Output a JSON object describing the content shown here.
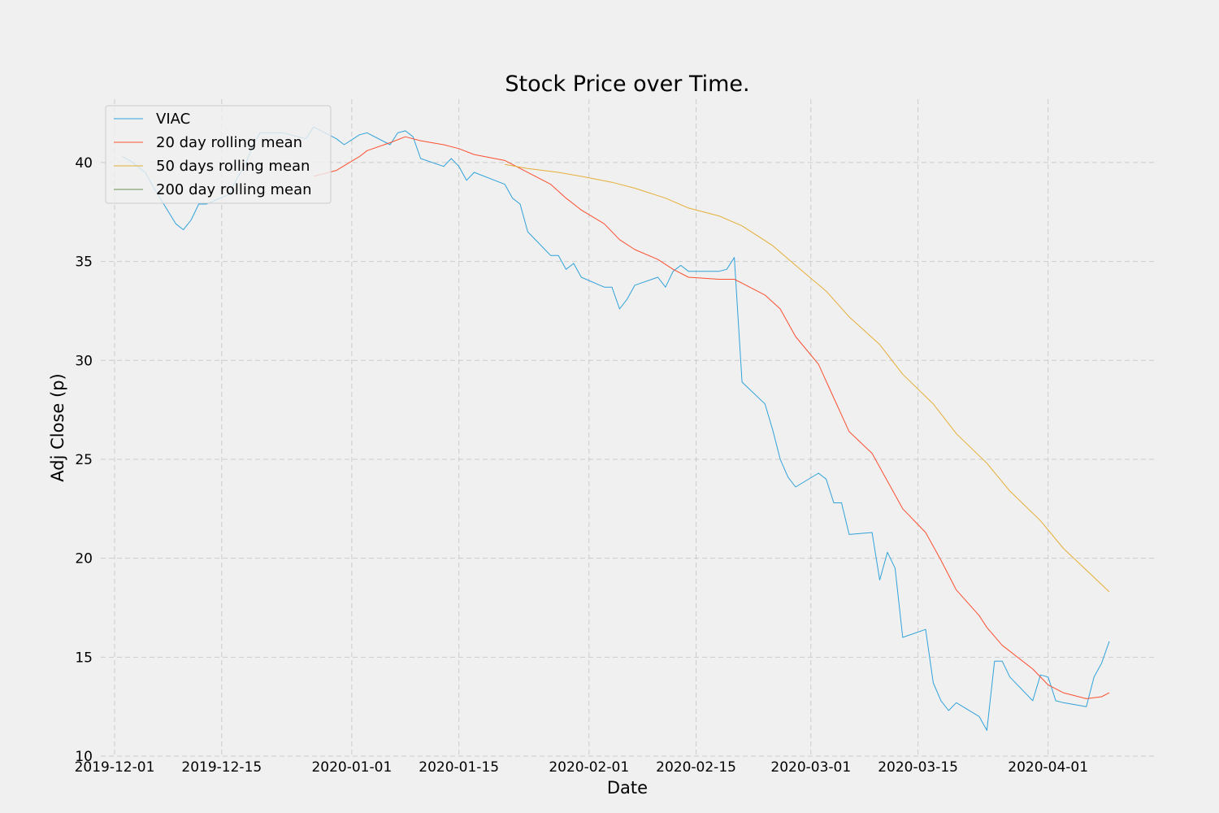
{
  "chart_data": {
    "type": "line",
    "title": "Stock Price over Time.",
    "xlabel": "Date",
    "ylabel": "Adj Close (p)",
    "xlim": [
      "2019-12-01",
      "2020-04-09"
    ],
    "ylim": [
      10,
      43.2
    ],
    "grid": true,
    "legend_position": "top-left",
    "x_ticks": [
      "2019-12-01",
      "2019-12-15",
      "2020-01-01",
      "2020-01-15",
      "2020-02-01",
      "2020-02-15",
      "2020-03-01",
      "2020-03-15",
      "2020-04-01"
    ],
    "y_ticks": [
      10,
      15,
      20,
      25,
      30,
      35,
      40
    ],
    "series": [
      {
        "name": "VIAC",
        "color": "#30a2da",
        "points": [
          [
            "2019-12-02",
            40.3
          ],
          [
            "2019-12-03",
            40.1
          ],
          [
            "2019-12-04",
            39.8
          ],
          [
            "2019-12-05",
            39.5
          ],
          [
            "2019-12-06",
            38.8
          ],
          [
            "2019-12-09",
            36.9
          ],
          [
            "2019-12-10",
            36.6
          ],
          [
            "2019-12-11",
            37.1
          ],
          [
            "2019-12-12",
            37.9
          ],
          [
            "2019-12-13",
            37.9
          ],
          [
            "2019-12-16",
            38.4
          ],
          [
            "2019-12-17",
            39.2
          ],
          [
            "2019-12-18",
            39.8
          ],
          [
            "2019-12-19",
            40.8
          ],
          [
            "2019-12-20",
            41.5
          ],
          [
            "2019-12-23",
            41.5
          ],
          [
            "2019-12-24",
            41.4
          ],
          [
            "2019-12-26",
            41.2
          ],
          [
            "2019-12-27",
            41.8
          ],
          [
            "2019-12-30",
            41.2
          ],
          [
            "2019-12-31",
            40.9
          ],
          [
            "2020-01-02",
            41.4
          ],
          [
            "2020-01-03",
            41.5
          ],
          [
            "2020-01-06",
            40.9
          ],
          [
            "2020-01-07",
            41.5
          ],
          [
            "2020-01-08",
            41.6
          ],
          [
            "2020-01-09",
            41.3
          ],
          [
            "2020-01-10",
            40.2
          ],
          [
            "2020-01-13",
            39.8
          ],
          [
            "2020-01-14",
            40.2
          ],
          [
            "2020-01-15",
            39.8
          ],
          [
            "2020-01-16",
            39.1
          ],
          [
            "2020-01-17",
            39.5
          ],
          [
            "2020-01-21",
            38.9
          ],
          [
            "2020-01-22",
            38.2
          ],
          [
            "2020-01-23",
            37.9
          ],
          [
            "2020-01-24",
            36.5
          ],
          [
            "2020-01-27",
            35.3
          ],
          [
            "2020-01-28",
            35.3
          ],
          [
            "2020-01-29",
            34.6
          ],
          [
            "2020-01-30",
            34.9
          ],
          [
            "2020-01-31",
            34.2
          ],
          [
            "2020-02-03",
            33.7
          ],
          [
            "2020-02-04",
            33.7
          ],
          [
            "2020-02-05",
            32.6
          ],
          [
            "2020-02-06",
            33.1
          ],
          [
            "2020-02-07",
            33.8
          ],
          [
            "2020-02-10",
            34.2
          ],
          [
            "2020-02-11",
            33.7
          ],
          [
            "2020-02-12",
            34.5
          ],
          [
            "2020-02-13",
            34.8
          ],
          [
            "2020-02-14",
            34.5
          ],
          [
            "2020-02-18",
            34.5
          ],
          [
            "2020-02-19",
            34.6
          ],
          [
            "2020-02-20",
            35.2
          ],
          [
            "2020-02-21",
            28.9
          ],
          [
            "2020-02-24",
            27.8
          ],
          [
            "2020-02-25",
            26.5
          ],
          [
            "2020-02-26",
            25.0
          ],
          [
            "2020-02-27",
            24.1
          ],
          [
            "2020-02-28",
            23.6
          ],
          [
            "2020-03-02",
            24.3
          ],
          [
            "2020-03-03",
            24.0
          ],
          [
            "2020-03-04",
            22.8
          ],
          [
            "2020-03-05",
            22.8
          ],
          [
            "2020-03-06",
            21.2
          ],
          [
            "2020-03-09",
            21.3
          ],
          [
            "2020-03-10",
            18.9
          ],
          [
            "2020-03-11",
            20.3
          ],
          [
            "2020-03-12",
            19.5
          ],
          [
            "2020-03-13",
            16.0
          ],
          [
            "2020-03-16",
            16.4
          ],
          [
            "2020-03-17",
            13.7
          ],
          [
            "2020-03-18",
            12.8
          ],
          [
            "2020-03-19",
            12.3
          ],
          [
            "2020-03-20",
            12.7
          ],
          [
            "2020-03-23",
            12.0
          ],
          [
            "2020-03-24",
            11.3
          ],
          [
            "2020-03-25",
            14.8
          ],
          [
            "2020-03-26",
            14.8
          ],
          [
            "2020-03-27",
            14.0
          ],
          [
            "2020-03-30",
            12.8
          ],
          [
            "2020-03-31",
            14.1
          ],
          [
            "2020-04-01",
            14.0
          ],
          [
            "2020-04-02",
            12.8
          ],
          [
            "2020-04-03",
            12.7
          ],
          [
            "2020-04-06",
            12.5
          ],
          [
            "2020-04-07",
            14.0
          ],
          [
            "2020-04-08",
            14.7
          ],
          [
            "2020-04-09",
            15.8
          ]
        ]
      },
      {
        "name": "20 day rolling mean",
        "color": "#fc4f30",
        "points": [
          [
            "2019-12-27",
            39.3
          ],
          [
            "2019-12-30",
            39.6
          ],
          [
            "2020-01-02",
            40.3
          ],
          [
            "2020-01-03",
            40.6
          ],
          [
            "2020-01-06",
            41.0
          ],
          [
            "2020-01-08",
            41.3
          ],
          [
            "2020-01-10",
            41.1
          ],
          [
            "2020-01-13",
            40.9
          ],
          [
            "2020-01-15",
            40.7
          ],
          [
            "2020-01-17",
            40.4
          ],
          [
            "2020-01-21",
            40.1
          ],
          [
            "2020-01-23",
            39.7
          ],
          [
            "2020-01-27",
            38.9
          ],
          [
            "2020-01-29",
            38.2
          ],
          [
            "2020-01-31",
            37.6
          ],
          [
            "2020-02-03",
            36.9
          ],
          [
            "2020-02-05",
            36.1
          ],
          [
            "2020-02-07",
            35.6
          ],
          [
            "2020-02-10",
            35.1
          ],
          [
            "2020-02-12",
            34.6
          ],
          [
            "2020-02-14",
            34.2
          ],
          [
            "2020-02-18",
            34.1
          ],
          [
            "2020-02-20",
            34.1
          ],
          [
            "2020-02-21",
            33.9
          ],
          [
            "2020-02-24",
            33.3
          ],
          [
            "2020-02-26",
            32.6
          ],
          [
            "2020-02-28",
            31.2
          ],
          [
            "2020-03-02",
            29.8
          ],
          [
            "2020-03-04",
            28.1
          ],
          [
            "2020-03-06",
            26.4
          ],
          [
            "2020-03-09",
            25.3
          ],
          [
            "2020-03-11",
            23.9
          ],
          [
            "2020-03-13",
            22.5
          ],
          [
            "2020-03-16",
            21.3
          ],
          [
            "2020-03-18",
            19.9
          ],
          [
            "2020-03-20",
            18.4
          ],
          [
            "2020-03-23",
            17.1
          ],
          [
            "2020-03-24",
            16.5
          ],
          [
            "2020-03-26",
            15.6
          ],
          [
            "2020-03-30",
            14.4
          ],
          [
            "2020-04-01",
            13.6
          ],
          [
            "2020-04-03",
            13.2
          ],
          [
            "2020-04-06",
            12.9
          ],
          [
            "2020-04-08",
            13.0
          ],
          [
            "2020-04-09",
            13.2
          ]
        ]
      },
      {
        "name": "50 days rolling mean",
        "color": "#e5ae38",
        "points": [
          [
            "2020-01-21",
            39.9
          ],
          [
            "2020-01-24",
            39.7
          ],
          [
            "2020-01-28",
            39.5
          ],
          [
            "2020-01-31",
            39.3
          ],
          [
            "2020-02-04",
            39.0
          ],
          [
            "2020-02-07",
            38.7
          ],
          [
            "2020-02-11",
            38.2
          ],
          [
            "2020-02-14",
            37.7
          ],
          [
            "2020-02-18",
            37.3
          ],
          [
            "2020-02-21",
            36.8
          ],
          [
            "2020-02-25",
            35.8
          ],
          [
            "2020-02-28",
            34.8
          ],
          [
            "2020-03-03",
            33.5
          ],
          [
            "2020-03-06",
            32.2
          ],
          [
            "2020-03-10",
            30.8
          ],
          [
            "2020-03-13",
            29.3
          ],
          [
            "2020-03-17",
            27.8
          ],
          [
            "2020-03-20",
            26.3
          ],
          [
            "2020-03-24",
            24.8
          ],
          [
            "2020-03-27",
            23.4
          ],
          [
            "2020-03-31",
            21.9
          ],
          [
            "2020-04-03",
            20.5
          ],
          [
            "2020-04-06",
            19.4
          ],
          [
            "2020-04-09",
            18.3
          ]
        ]
      },
      {
        "name": "200 day rolling mean",
        "color": "#6d904f",
        "points": []
      }
    ]
  }
}
